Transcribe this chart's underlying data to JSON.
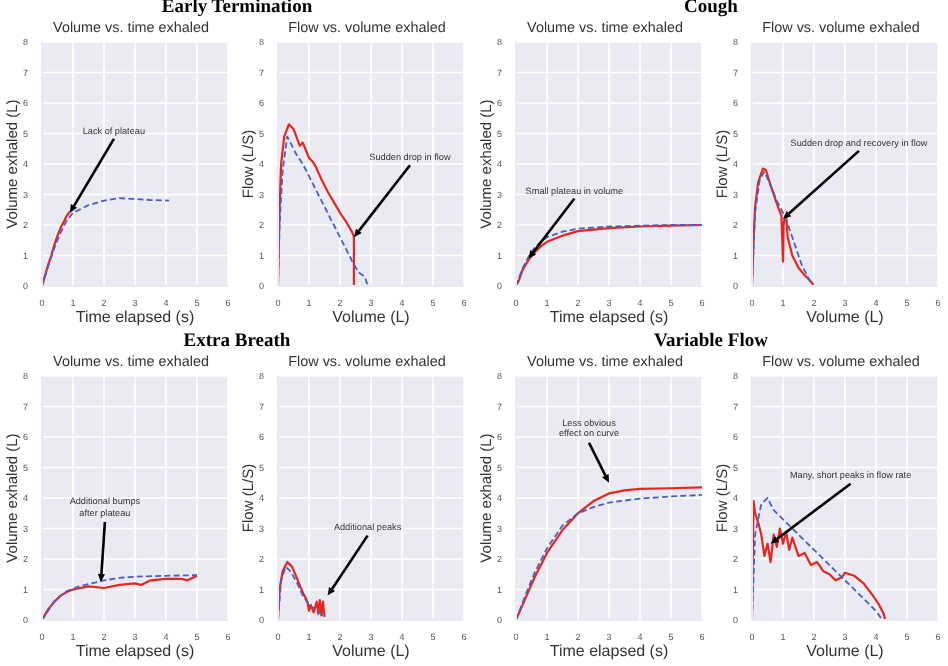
{
  "chart_data": [
    {
      "type": "line",
      "title": "Early Termination",
      "subtitle": "Volume vs. time exhaled",
      "xlabel": "Time elapsed (s)",
      "ylabel": "Volume exhaled (L)",
      "xlim": [
        0,
        6
      ],
      "ylim": [
        0,
        8
      ],
      "xticks": [
        0,
        1,
        2,
        3,
        4,
        5,
        6
      ],
      "yticks": [
        0,
        1,
        2,
        3,
        4,
        5,
        6,
        7,
        8
      ],
      "grid": true,
      "series": [
        {
          "color": "#e8251f",
          "line_style": "solid",
          "x": [
            0,
            0.1,
            0.2,
            0.3,
            0.4,
            0.5,
            0.6,
            0.7,
            0.8,
            0.9
          ],
          "values": [
            0,
            0.35,
            0.7,
            1.0,
            1.35,
            1.65,
            1.9,
            2.1,
            2.3,
            2.45
          ]
        },
        {
          "color": "#4a5fc1",
          "line_style": "dashed",
          "x": [
            0,
            0.2,
            0.4,
            0.6,
            0.8,
            1.0,
            1.5,
            2.0,
            2.5,
            3.0,
            3.5,
            4.1
          ],
          "values": [
            0,
            0.65,
            1.25,
            1.75,
            2.15,
            2.4,
            2.65,
            2.8,
            2.88,
            2.85,
            2.82,
            2.8
          ]
        }
      ],
      "annotations": [
        {
          "text": "Lack of plateau",
          "x": 0.9,
          "y": 2.4
        }
      ]
    },
    {
      "type": "line",
      "subtitle": "Flow vs. volume exhaled",
      "xlabel": "Volume (L)",
      "ylabel": "Flow (L/S)",
      "xlim": [
        0,
        6
      ],
      "ylim": [
        0,
        8
      ],
      "xticks": [
        0,
        1,
        2,
        3,
        4,
        5,
        6
      ],
      "yticks": [
        0,
        1,
        2,
        3,
        4,
        5,
        6,
        7,
        8
      ],
      "grid": true,
      "series": [
        {
          "color": "#e8251f",
          "line_style": "solid",
          "x": [
            0,
            0.05,
            0.1,
            0.2,
            0.35,
            0.5,
            0.7,
            0.8,
            0.9,
            1.0,
            1.1,
            1.2,
            1.4,
            1.6,
            1.8,
            2.0,
            2.2,
            2.4,
            2.45,
            2.45
          ],
          "values": [
            0,
            2.5,
            4.0,
            4.9,
            5.3,
            5.15,
            4.6,
            4.7,
            4.45,
            4.2,
            4.1,
            3.95,
            3.5,
            3.1,
            2.75,
            2.4,
            2.1,
            1.75,
            1.6,
            0
          ]
        },
        {
          "color": "#4a5fc1",
          "line_style": "dashed",
          "x": [
            0,
            0.05,
            0.15,
            0.3,
            0.45,
            0.6,
            0.8,
            1.0,
            1.2,
            1.4,
            1.6,
            1.8,
            2.0,
            2.2,
            2.4,
            2.6,
            2.8,
            2.9
          ],
          "values": [
            0,
            2.0,
            3.8,
            4.9,
            4.6,
            4.3,
            4.0,
            3.6,
            3.2,
            2.8,
            2.4,
            2.0,
            1.6,
            1.2,
            0.8,
            0.45,
            0.3,
            0
          ]
        }
      ],
      "annotations": [
        {
          "text": "Sudden drop in flow",
          "x": 2.45,
          "y": 1.6
        }
      ]
    },
    {
      "type": "line",
      "title": "Cough",
      "subtitle": "Volume vs. time exhaled",
      "xlabel": "Time elapsed (s)",
      "ylabel": "Volume exhaled (L)",
      "xlim": [
        0,
        6
      ],
      "ylim": [
        0,
        8
      ],
      "xticks": [
        0,
        1,
        2,
        3,
        4,
        5,
        6
      ],
      "yticks": [
        0,
        1,
        2,
        3,
        4,
        5,
        6,
        7,
        8
      ],
      "grid": true,
      "series": [
        {
          "color": "#e8251f",
          "line_style": "solid",
          "x": [
            0,
            0.1,
            0.2,
            0.4,
            0.6,
            0.8,
            1.0,
            1.5,
            2.0,
            2.5,
            3.0,
            4.0,
            5.0,
            6.0
          ],
          "values": [
            0,
            0.2,
            0.5,
            0.85,
            1.1,
            1.3,
            1.45,
            1.65,
            1.8,
            1.85,
            1.9,
            1.95,
            1.98,
            2.0
          ]
        },
        {
          "color": "#4a5fc1",
          "line_style": "dashed",
          "x": [
            0,
            0.2,
            0.4,
            0.6,
            0.8,
            1.0,
            1.5,
            2.0,
            3.0,
            4.0,
            5.0,
            6.0
          ],
          "values": [
            0,
            0.55,
            0.95,
            1.25,
            1.45,
            1.6,
            1.78,
            1.88,
            1.95,
            1.98,
            2.0,
            2.0
          ]
        }
      ],
      "annotations": [
        {
          "text": "Small plateau in volume",
          "x": 0.4,
          "y": 0.9
        }
      ]
    },
    {
      "type": "line",
      "subtitle": "Flow vs. volume exhaled",
      "xlabel": "Volume (L)",
      "ylabel": "Flow (L/S)",
      "xlim": [
        0,
        6
      ],
      "ylim": [
        0,
        8
      ],
      "xticks": [
        0,
        1,
        2,
        3,
        4,
        5,
        6
      ],
      "yticks": [
        0,
        1,
        2,
        3,
        4,
        5,
        6,
        7,
        8
      ],
      "grid": true,
      "series": [
        {
          "color": "#e8251f",
          "line_style": "solid",
          "x": [
            0,
            0.05,
            0.1,
            0.2,
            0.35,
            0.45,
            0.6,
            0.8,
            0.95,
            1.0,
            1.02,
            1.05,
            1.1,
            1.15,
            1.3,
            1.5,
            1.7,
            1.9,
            2.0
          ],
          "values": [
            0,
            1.5,
            2.6,
            3.4,
            3.85,
            3.8,
            3.3,
            2.7,
            2.3,
            0.8,
            2.0,
            2.2,
            2.3,
            1.6,
            1.0,
            0.6,
            0.35,
            0.15,
            0
          ]
        },
        {
          "color": "#4a5fc1",
          "line_style": "dashed",
          "x": [
            0,
            0.1,
            0.25,
            0.4,
            0.6,
            0.8,
            1.0,
            1.2,
            1.4,
            1.6,
            1.8,
            1.95
          ],
          "values": [
            0,
            2.4,
            3.5,
            3.75,
            3.3,
            2.8,
            2.4,
            1.9,
            1.3,
            0.7,
            0.3,
            0
          ]
        }
      ],
      "annotations": [
        {
          "text": "Sudden drop and recovery in flow",
          "x": 1.0,
          "y": 2.2
        }
      ]
    },
    {
      "type": "line",
      "title": "Extra Breath",
      "subtitle": "Volume vs. time exhaled",
      "xlabel": "Time elapsed (s)",
      "ylabel": "Volume exhaled (L)",
      "xlim": [
        0,
        6
      ],
      "ylim": [
        0,
        8
      ],
      "xticks": [
        0,
        1,
        2,
        3,
        4,
        5,
        6
      ],
      "yticks": [
        0,
        1,
        2,
        3,
        4,
        5,
        6,
        7,
        8
      ],
      "grid": true,
      "series": [
        {
          "color": "#e8251f",
          "line_style": "solid",
          "x": [
            0,
            0.2,
            0.4,
            0.6,
            0.8,
            1.0,
            1.5,
            2.0,
            2.5,
            3.0,
            3.2,
            3.5,
            4.0,
            4.5,
            4.7,
            5.0
          ],
          "values": [
            0,
            0.35,
            0.6,
            0.8,
            0.92,
            1.0,
            1.1,
            1.05,
            1.15,
            1.2,
            1.15,
            1.3,
            1.35,
            1.35,
            1.3,
            1.45
          ]
        },
        {
          "color": "#4a5fc1",
          "line_style": "dashed",
          "x": [
            0,
            0.4,
            0.8,
            1.2,
            1.6,
            2.0,
            2.5,
            3.0,
            4.0,
            5.0
          ],
          "values": [
            0,
            0.62,
            0.95,
            1.1,
            1.2,
            1.3,
            1.38,
            1.42,
            1.45,
            1.47
          ]
        }
      ],
      "annotations": [
        {
          "text": "Additional bumps after plateau",
          "x": 1.9,
          "y": 1.25
        }
      ]
    },
    {
      "type": "line",
      "subtitle": "Flow vs. volume exhaled",
      "xlabel": "Volume (L)",
      "ylabel": "Flow (L/S)",
      "xlim": [
        0,
        6
      ],
      "ylim": [
        0,
        8
      ],
      "xticks": [
        0,
        1,
        2,
        3,
        4,
        5,
        6
      ],
      "yticks": [
        0,
        1,
        2,
        3,
        4,
        5,
        6,
        7,
        8
      ],
      "grid": true,
      "series": [
        {
          "color": "#e8251f",
          "line_style": "solid",
          "x": [
            0,
            0.05,
            0.15,
            0.3,
            0.45,
            0.6,
            0.8,
            0.95,
            1.0,
            1.05,
            1.15,
            1.25,
            1.3,
            1.35,
            1.4,
            1.45,
            1.5
          ],
          "values": [
            0,
            1.0,
            1.6,
            1.9,
            1.75,
            1.4,
            0.9,
            0.6,
            0.3,
            0.5,
            0.25,
            0.6,
            0.2,
            0.65,
            0.15,
            0.6,
            0.1
          ]
        },
        {
          "color": "#4a5fc1",
          "line_style": "dashed",
          "x": [
            0,
            0.1,
            0.25,
            0.4,
            0.6,
            0.8,
            1.0,
            1.2,
            1.4,
            1.5
          ],
          "values": [
            0,
            1.3,
            1.75,
            1.6,
            1.25,
            0.8,
            0.5,
            0.35,
            0.2,
            0.1
          ]
        }
      ],
      "annotations": [
        {
          "text": "Additional peaks",
          "x": 1.6,
          "y": 0.8
        }
      ]
    },
    {
      "type": "line",
      "title": "Variable Flow",
      "subtitle": "Volume vs. time exhaled",
      "xlabel": "Time elapsed (s)",
      "ylabel": "Volume exhaled (L)",
      "xlim": [
        0,
        6
      ],
      "ylim": [
        0,
        8
      ],
      "xticks": [
        0,
        1,
        2,
        3,
        4,
        5,
        6
      ],
      "yticks": [
        0,
        1,
        2,
        3,
        4,
        5,
        6,
        7,
        8
      ],
      "grid": true,
      "series": [
        {
          "color": "#e8251f",
          "line_style": "solid",
          "x": [
            0,
            0.3,
            0.6,
            1.0,
            1.5,
            2.0,
            2.5,
            3.0,
            3.5,
            4.0,
            5.0,
            6.0
          ],
          "values": [
            0,
            0.7,
            1.4,
            2.2,
            2.95,
            3.5,
            3.9,
            4.15,
            4.25,
            4.3,
            4.32,
            4.35
          ]
        },
        {
          "color": "#4a5fc1",
          "line_style": "dashed",
          "x": [
            0,
            0.3,
            0.6,
            1.0,
            1.5,
            2.0,
            2.5,
            3.0,
            4.0,
            5.0,
            6.0
          ],
          "values": [
            0,
            0.8,
            1.55,
            2.35,
            3.1,
            3.5,
            3.7,
            3.85,
            3.98,
            4.05,
            4.1
          ]
        }
      ],
      "annotations": [
        {
          "text": "Less obvious effect on curve",
          "x": 3.0,
          "y": 4.5
        }
      ]
    },
    {
      "type": "line",
      "subtitle": "Flow vs. volume exhaled",
      "xlabel": "Volume (L)",
      "ylabel": "Flow (L/S)",
      "xlim": [
        0,
        6
      ],
      "ylim": [
        0,
        8
      ],
      "xticks": [
        0,
        1,
        2,
        3,
        4,
        5,
        6
      ],
      "yticks": [
        0,
        1,
        2,
        3,
        4,
        5,
        6,
        7,
        8
      ],
      "grid": true,
      "series": [
        {
          "color": "#e8251f",
          "line_style": "solid",
          "x": [
            0,
            0.05,
            0.1,
            0.2,
            0.3,
            0.4,
            0.5,
            0.6,
            0.7,
            0.8,
            0.9,
            1.0,
            1.1,
            1.2,
            1.3,
            1.5,
            1.7,
            1.9,
            2.1,
            2.3,
            2.5,
            2.7,
            2.9,
            3.0,
            3.3,
            3.6,
            3.9,
            4.1,
            4.25,
            4.3
          ],
          "values": [
            0,
            3.9,
            3.5,
            3.2,
            2.8,
            2.1,
            2.5,
            1.9,
            2.8,
            2.4,
            3.0,
            2.5,
            2.9,
            2.3,
            2.7,
            2.1,
            2.2,
            1.8,
            1.9,
            1.6,
            1.5,
            1.3,
            1.4,
            1.55,
            1.45,
            1.2,
            0.8,
            0.5,
            0.2,
            0
          ]
        },
        {
          "color": "#4a5fc1",
          "line_style": "dashed",
          "x": [
            0,
            0.1,
            0.3,
            0.5,
            0.7,
            1.0,
            1.5,
            2.0,
            2.5,
            3.0,
            3.5,
            4.0,
            4.2
          ],
          "values": [
            0,
            2.8,
            3.8,
            4.0,
            3.6,
            3.3,
            2.8,
            2.3,
            1.8,
            1.3,
            0.8,
            0.3,
            0
          ]
        }
      ],
      "annotations": [
        {
          "text": "Many, short peaks in flow rate",
          "x": 0.6,
          "y": 2.5
        }
      ]
    }
  ]
}
